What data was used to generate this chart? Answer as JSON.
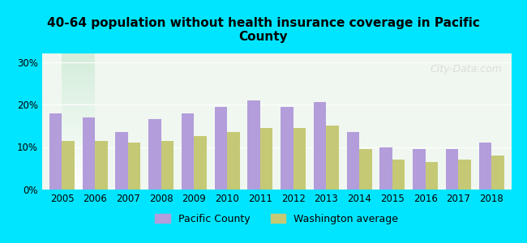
{
  "title": "40-64 population without health insurance coverage in Pacific\nCounty",
  "years": [
    2005,
    2006,
    2007,
    2008,
    2009,
    2010,
    2011,
    2012,
    2013,
    2014,
    2015,
    2016,
    2017,
    2018
  ],
  "pacific_county": [
    18,
    17,
    13.5,
    16.5,
    18,
    19.5,
    21,
    19.5,
    20.5,
    13.5,
    10,
    9.5,
    9.5,
    11
  ],
  "washington_avg": [
    11.5,
    11.5,
    11,
    11.5,
    12.5,
    13.5,
    14.5,
    14.5,
    15,
    9.5,
    7,
    6.5,
    7,
    8
  ],
  "bar_color_pacific": "#b39ddb",
  "bar_color_washington": "#c5c975",
  "background_color": "#00e5ff",
  "plot_bg_top": "#e8f5e9",
  "plot_bg_bottom": "#ffffff",
  "ylabel_ticks": [
    "0%",
    "10%",
    "20%",
    "30%"
  ],
  "ytick_values": [
    0,
    10,
    20,
    30
  ],
  "ylim": [
    0,
    32
  ],
  "bar_width": 0.38,
  "legend_pacific": "Pacific County",
  "legend_washington": "Washington average",
  "watermark": "City-Data.com"
}
